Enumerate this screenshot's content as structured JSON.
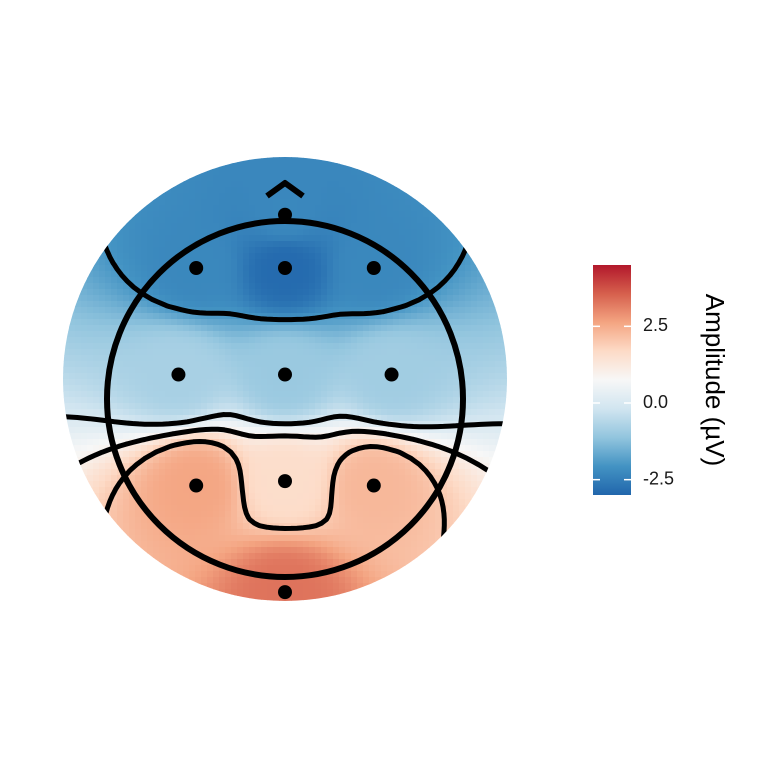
{
  "chart_data": {
    "type": "heatmap",
    "subtype": "scalp-topography",
    "title": "",
    "colorbar": {
      "title": "Amplitude (µV)",
      "ticks": [
        2.5,
        0.0,
        -2.5
      ],
      "tick_labels": [
        "2.5",
        "0.0",
        "-2.5"
      ],
      "range": [
        -3.0,
        4.5
      ],
      "palette": [
        "#2166ac",
        "#4393c3",
        "#92c5de",
        "#d1e5f0",
        "#f7f7f7",
        "#fddbc7",
        "#f4a582",
        "#d6604d",
        "#b2182b"
      ],
      "placement": "right"
    },
    "head": {
      "nose": "top",
      "outline": true
    },
    "electrodes": [
      {
        "x": 0.0,
        "y": 0.74,
        "amplitude": -2.3
      },
      {
        "x": -0.4,
        "y": 0.5,
        "amplitude": -2.3
      },
      {
        "x": 0.0,
        "y": 0.5,
        "amplitude": -2.9
      },
      {
        "x": 0.4,
        "y": 0.5,
        "amplitude": -2.3
      },
      {
        "x": -0.48,
        "y": 0.02,
        "amplitude": -0.8
      },
      {
        "x": 0.0,
        "y": 0.02,
        "amplitude": -1.0
      },
      {
        "x": 0.48,
        "y": 0.02,
        "amplitude": -0.9
      },
      {
        "x": -0.4,
        "y": -0.48,
        "amplitude": 2.6
      },
      {
        "x": 0.0,
        "y": -0.46,
        "amplitude": 1.6
      },
      {
        "x": 0.4,
        "y": -0.48,
        "amplitude": 2.3
      },
      {
        "x": 0.0,
        "y": -0.96,
        "amplitude": 3.3
      }
    ],
    "contour_levels": [
      -2.0,
      0.0,
      1.0,
      2.0,
      4.0
    ],
    "negative_contours": "dashed",
    "grid": false
  }
}
